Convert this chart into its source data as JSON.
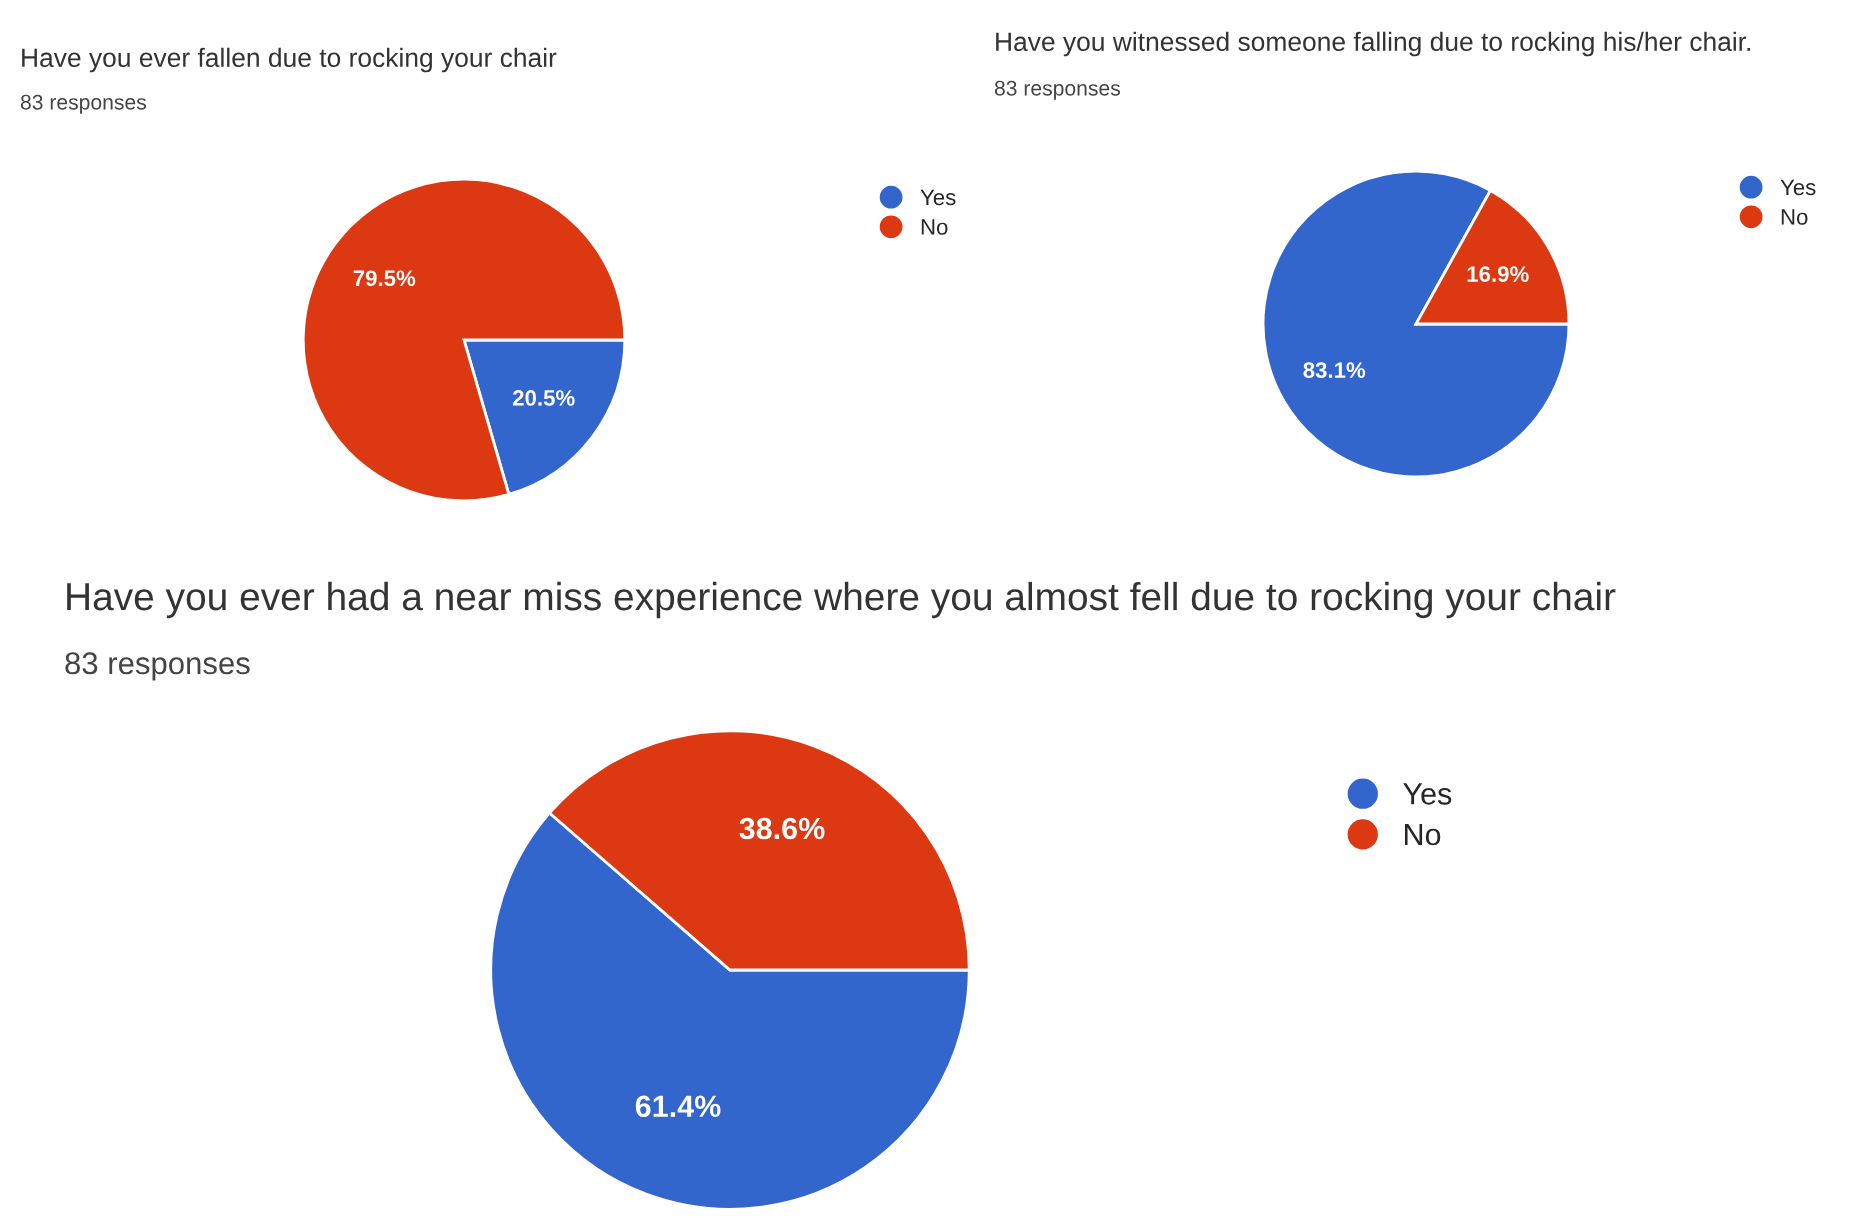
{
  "chart_data": [
    {
      "type": "pie",
      "title": "Have you ever fallen due to rocking your chair",
      "subtitle": "83 responses",
      "categories": [
        "Yes",
        "No"
      ],
      "values": [
        20.5,
        79.5
      ],
      "colors": [
        "#3366cc",
        "#dc3912"
      ],
      "value_labels": [
        "20.5%",
        "79.5%"
      ],
      "legend": "top right"
    },
    {
      "type": "pie",
      "title": "Have you witnessed someone falling due to rocking his/her chair.",
      "subtitle": "83 responses",
      "categories": [
        "Yes",
        "No"
      ],
      "values": [
        83.1,
        16.9
      ],
      "colors": [
        "#3366cc",
        "#dc3912"
      ],
      "value_labels": [
        "83.1%",
        "16.9%"
      ],
      "legend": "top right"
    },
    {
      "type": "pie",
      "title": "Have you ever had a near miss experience where you almost fell due to rocking your chair",
      "subtitle": "83 responses",
      "categories": [
        "Yes",
        "No"
      ],
      "values": [
        61.4,
        38.6
      ],
      "colors": [
        "#3366cc",
        "#dc3912"
      ],
      "value_labels": [
        "61.4%",
        "38.6%"
      ],
      "legend": "top right"
    }
  ]
}
